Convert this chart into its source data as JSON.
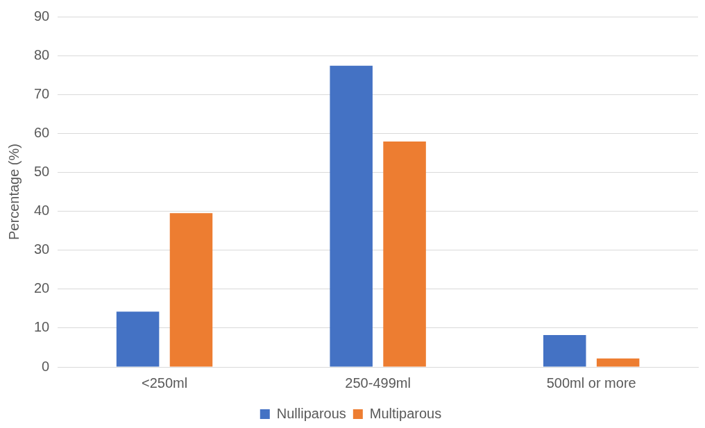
{
  "chart_data": {
    "type": "bar",
    "ylabel": "Percentage (%)",
    "categories": [
      "<250ml",
      "250-499ml",
      "500ml or more"
    ],
    "series": [
      {
        "name": "Nulliparous",
        "color": "#4472c4",
        "values": [
          14.2,
          77.4,
          8.2
        ]
      },
      {
        "name": "Multiparous",
        "color": "#ed7d31",
        "values": [
          39.5,
          57.9,
          2.2
        ]
      }
    ],
    "ylim": [
      0,
      90
    ],
    "yticks": [
      0,
      10,
      20,
      30,
      40,
      50,
      60,
      70,
      80,
      90
    ],
    "grid": "y",
    "legend": "bottom"
  }
}
